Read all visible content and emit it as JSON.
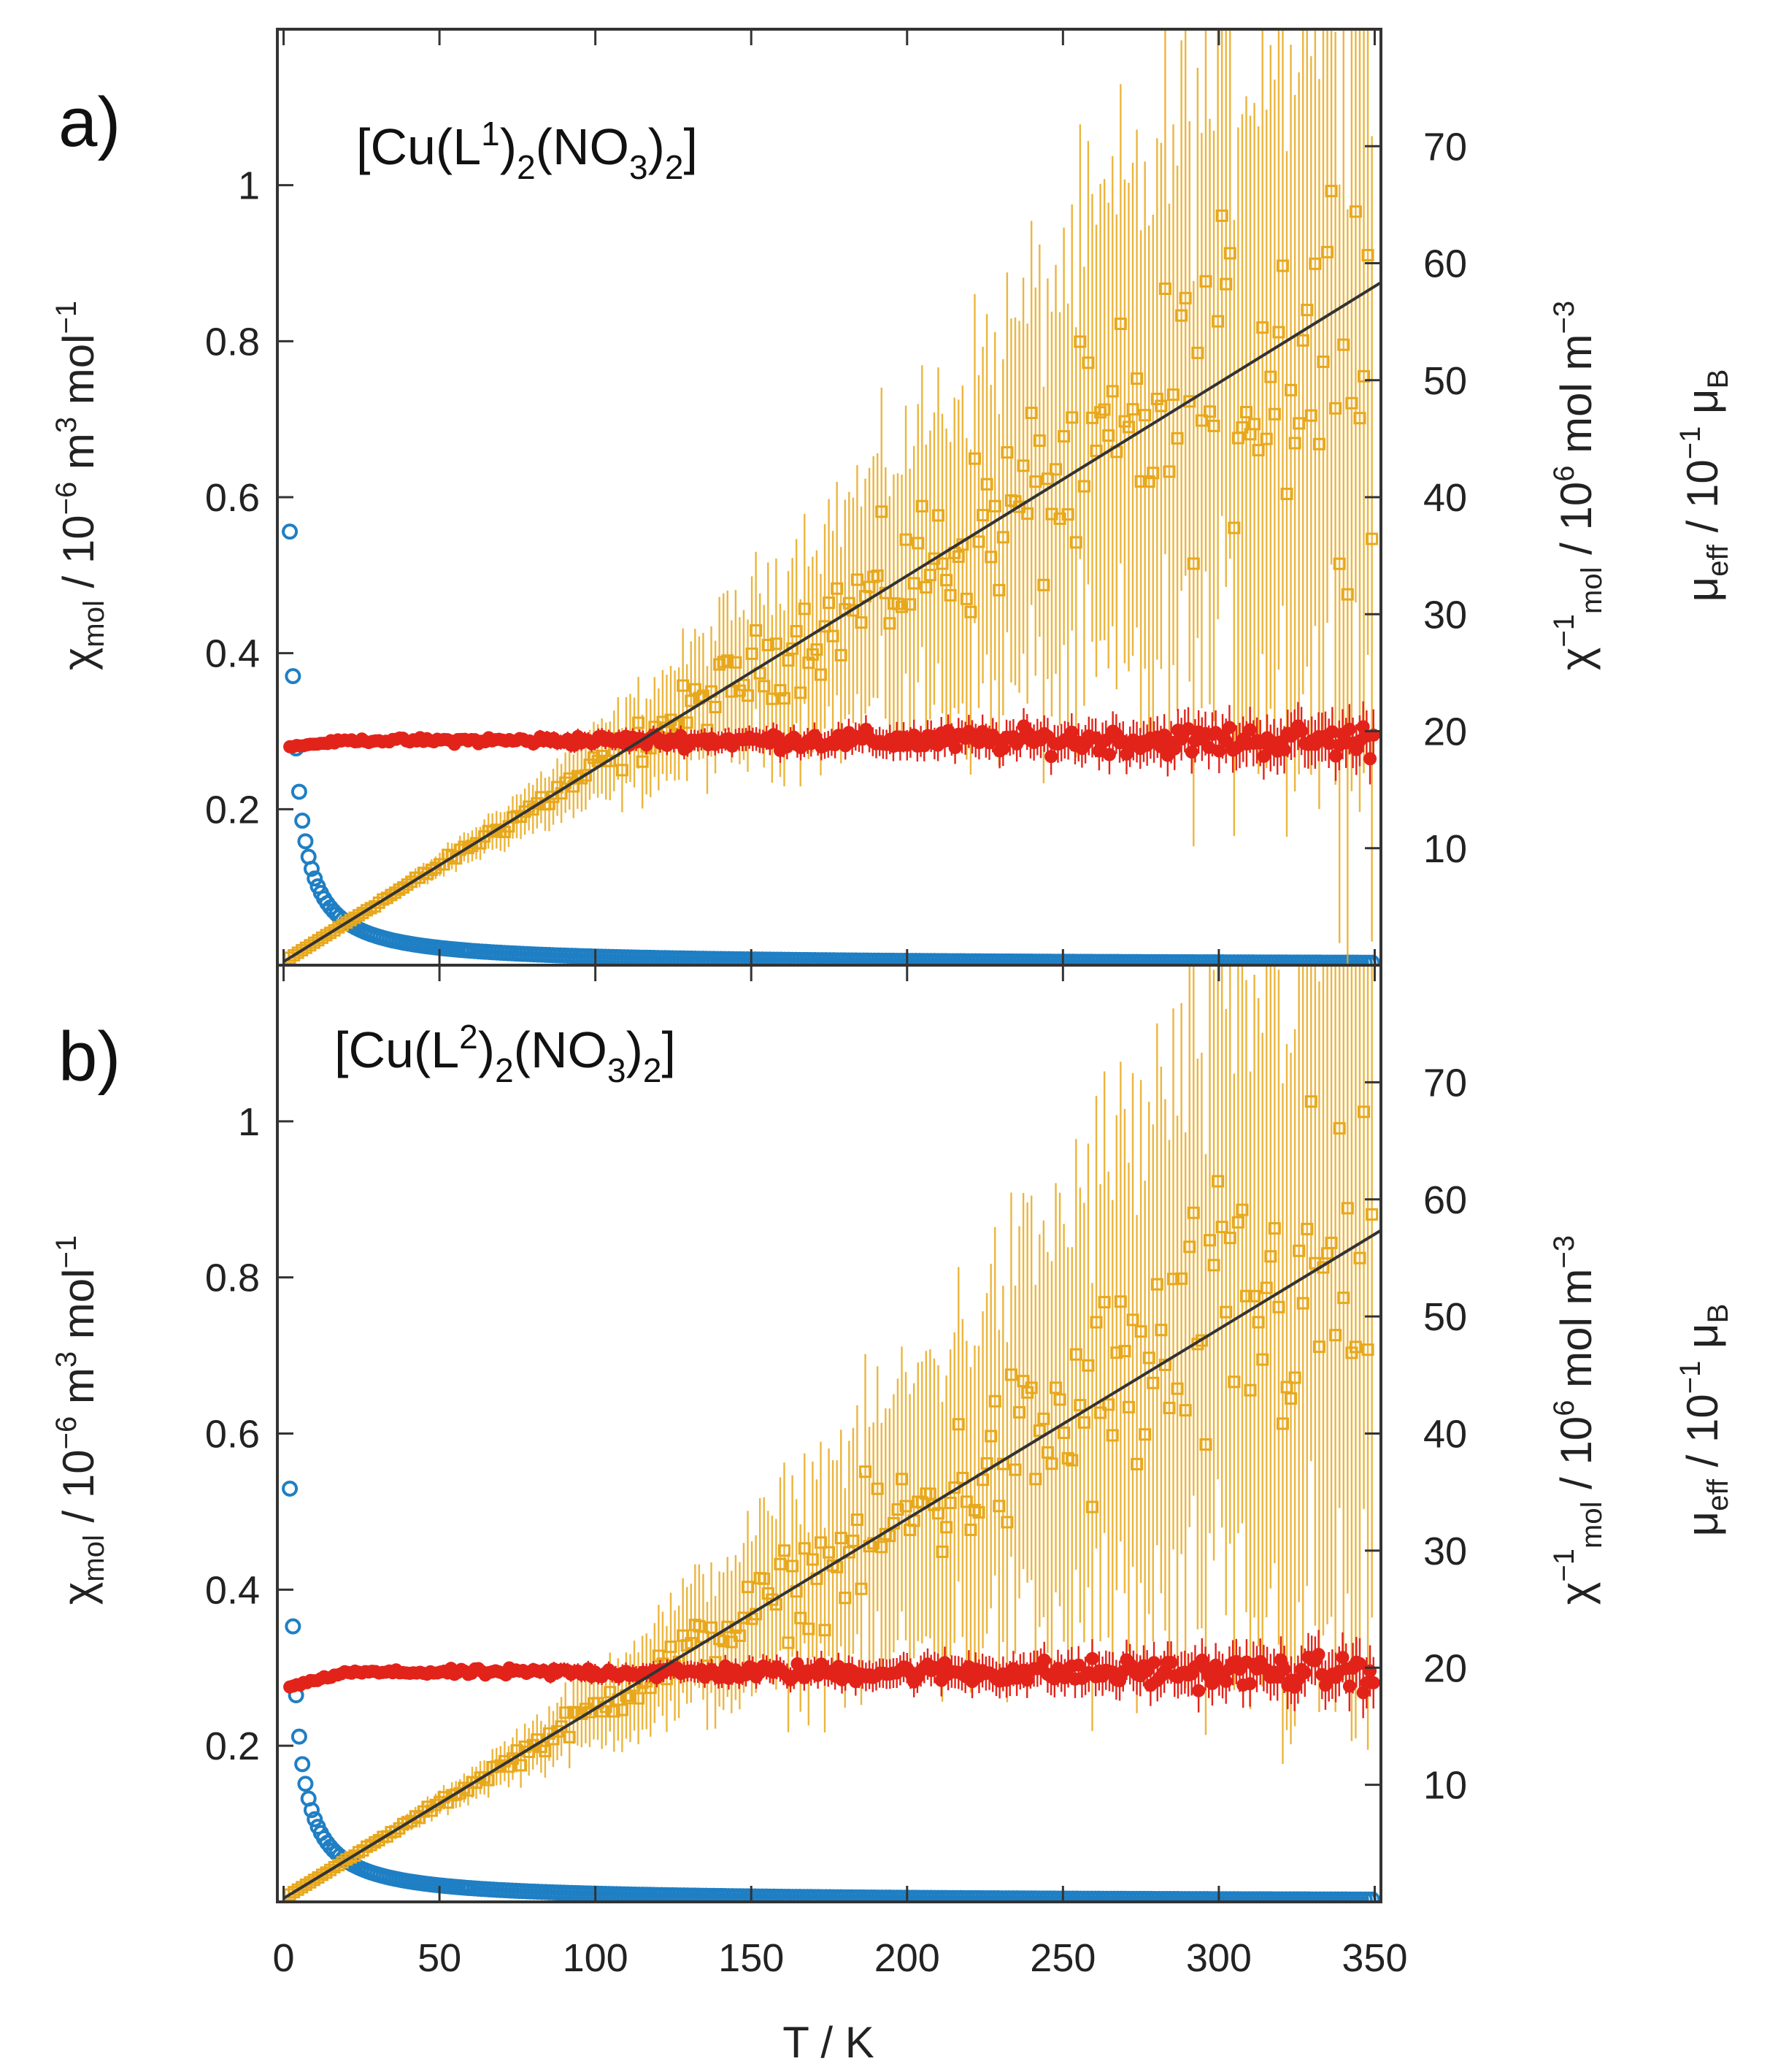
{
  "figure": {
    "x_axis_label": "T / K",
    "x_ticks": [
      "0",
      "50",
      "100",
      "150",
      "200",
      "250",
      "300",
      "350"
    ],
    "left_axis_label": "χmol / 10−6 m3 mol−1",
    "right_axis_label_1": "χ−1mol / 106 mol m−3",
    "right_axis_label_2": "μeff / 10−1 μB",
    "left_ticks": [
      "0.2",
      "0.4",
      "0.6",
      "0.8",
      "1"
    ],
    "right_ticks": [
      "10",
      "20",
      "30",
      "40",
      "50",
      "60",
      "70"
    ],
    "colors": {
      "chi": "#1f7fc4",
      "inv_chi": "#e8a81c",
      "mu_eff": "#e2231a",
      "fit": "#333333",
      "frame": "#333333"
    }
  },
  "chart_data": [
    {
      "type": "scatter",
      "panel": "a)",
      "compound": "[Cu(L1)2(NO3)2]",
      "xlabel": "T / K",
      "ylabel_left": "χmol / 10−6 m3 mol−1",
      "ylabel_right": "χ−1mol / 106 mol m−3 ; μeff / 10−1 μB",
      "xlim": [
        -2,
        352
      ],
      "ylim_left": [
        0,
        1.2
      ],
      "ylim_right": [
        0,
        80
      ],
      "series": [
        {
          "name": "χmol",
          "axis": "left",
          "marker": "open-circle",
          "color": "#1f7fc4",
          "curie_C": 0.0042,
          "x_start": 2,
          "x_end": 350
        },
        {
          "name": "χ−1mol",
          "axis": "right",
          "marker": "open-square",
          "color": "#e8a81c",
          "slope": 0.165,
          "intercept": 0.3,
          "x_start": 2,
          "x_end": 350,
          "error_growth": 0.012
        },
        {
          "name": "μeff",
          "axis": "right",
          "marker": "filled-circle",
          "color": "#e2231a",
          "plateau": 19.2,
          "low_T_value": 18.6,
          "x_start": 2,
          "x_end": 350
        },
        {
          "name": "Curie–Weiss fit",
          "axis": "right",
          "type": "line",
          "color": "#333333",
          "x": [
            0,
            350
          ],
          "y": [
            0.3,
            58
          ]
        }
      ]
    },
    {
      "type": "scatter",
      "panel": "b)",
      "compound": "[Cu(L2)2(NO3)2]",
      "xlabel": "T / K",
      "ylabel_left": "χmol / 10−6 m3 mol−1",
      "ylabel_right": "χ−1mol / 106 mol m−3 ; μeff / 10−1 μB",
      "xlim": [
        -2,
        352
      ],
      "ylim_left": [
        0,
        1.2
      ],
      "ylim_right": [
        0,
        80
      ],
      "series": [
        {
          "name": "χmol",
          "axis": "left",
          "marker": "open-circle",
          "color": "#1f7fc4",
          "curie_C": 0.004,
          "x_start": 2,
          "x_end": 350
        },
        {
          "name": "χ−1mol",
          "axis": "right",
          "marker": "open-square",
          "color": "#e8a81c",
          "slope": 0.162,
          "intercept": 0.3,
          "x_start": 2,
          "x_end": 350,
          "error_growth": 0.012
        },
        {
          "name": "μeff",
          "axis": "right",
          "marker": "filled-circle",
          "color": "#e2231a",
          "plateau": 19.6,
          "low_T_value": 18.2,
          "x_start": 2,
          "x_end": 350
        },
        {
          "name": "Curie–Weiss fit",
          "axis": "right",
          "type": "line",
          "color": "#333333",
          "x": [
            0,
            350
          ],
          "y": [
            0.3,
            57
          ]
        }
      ]
    }
  ]
}
